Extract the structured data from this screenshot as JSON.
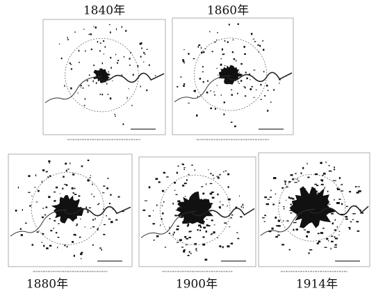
{
  "panels": [
    {
      "label": "1840年"
    },
    {
      "label": "1860年"
    },
    {
      "label": "1880年"
    },
    {
      "label": "1900年"
    },
    {
      "label": "1914年"
    }
  ]
}
